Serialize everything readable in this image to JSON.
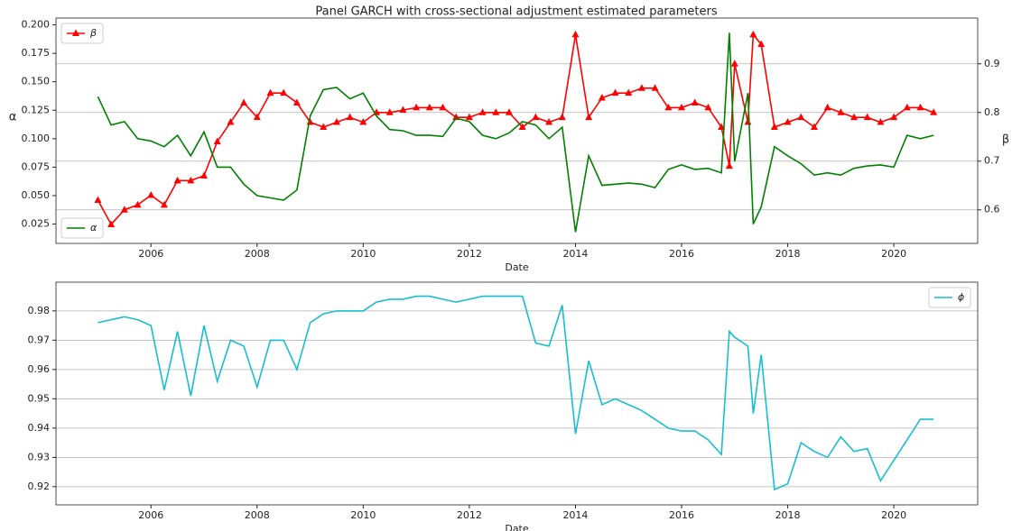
{
  "chart_data": [
    {
      "type": "line",
      "title": "Panel GARCH with cross-sectional adjustment estimated parameters",
      "xlabel": "Date",
      "ylabel": "α",
      "y2label": "β",
      "x": [
        2005,
        2005.25,
        2005.5,
        2005.75,
        2006,
        2006.25,
        2006.5,
        2006.75,
        2007,
        2007.25,
        2007.5,
        2007.75,
        2008,
        2008.25,
        2008.5,
        2008.75,
        2009,
        2009.25,
        2009.5,
        2009.75,
        2010,
        2010.25,
        2010.5,
        2010.75,
        2011,
        2011.25,
        2011.5,
        2011.75,
        2012,
        2012.25,
        2012.5,
        2012.75,
        2013,
        2013.25,
        2013.5,
        2013.75,
        2014,
        2014.25,
        2014.5,
        2014.75,
        2015,
        2015.25,
        2015.5,
        2015.75,
        2016,
        2016.25,
        2016.5,
        2016.75,
        2016.9,
        2017,
        2017.25,
        2017.35,
        2017.5,
        2017.75,
        2018,
        2018.25,
        2018.5,
        2018.75,
        2019,
        2019.25,
        2019.5,
        2019.75,
        2020,
        2020.25,
        2020.5,
        2020.75
      ],
      "xlim": [
        2004.21,
        2021.58
      ],
      "xticks": [
        2006,
        2008,
        2010,
        2012,
        2014,
        2016,
        2018,
        2020
      ],
      "ylim": [
        0.008,
        0.206
      ],
      "yticks": [
        0.025,
        {
          "value": 0.05,
          "label": "0.050"
        },
        0.075,
        {
          "value": 0.1,
          "label": "0.100"
        },
        0.125,
        {
          "value": 0.15,
          "label": "0.150"
        },
        0.175,
        {
          "value": 0.2,
          "label": "0.200"
        }
      ],
      "y2lim": [
        0.531,
        0.994
      ],
      "y2ticks": [
        0.6,
        0.7,
        0.8,
        0.9
      ],
      "grid": "y2",
      "series": [
        {
          "name": "β",
          "color": "#ff0000",
          "axis": "y2",
          "marker": "triangle",
          "legend": "upper left",
          "values": [
            0.62,
            0.57,
            0.6,
            0.61,
            0.63,
            0.61,
            0.66,
            0.66,
            0.67,
            0.74,
            0.78,
            0.82,
            0.79,
            0.84,
            0.84,
            0.82,
            0.78,
            0.77,
            0.78,
            0.79,
            0.78,
            0.8,
            0.8,
            0.805,
            0.81,
            0.81,
            0.81,
            0.79,
            0.79,
            0.8,
            0.8,
            0.8,
            0.77,
            0.79,
            0.78,
            0.79,
            0.96,
            0.79,
            0.83,
            0.84,
            0.84,
            0.85,
            0.85,
            0.81,
            0.81,
            0.82,
            0.81,
            0.77,
            0.69,
            0.9,
            0.78,
            0.96,
            0.94,
            0.77,
            0.78,
            0.79,
            0.77,
            0.81,
            0.8,
            0.79,
            0.79,
            0.78,
            0.79,
            0.81,
            0.81,
            0.8
          ]
        },
        {
          "name": "α",
          "color": "#008000",
          "legend": "lower left",
          "values": [
            0.137,
            0.112,
            0.115,
            0.1,
            0.098,
            0.093,
            0.103,
            0.085,
            0.106,
            0.075,
            0.075,
            0.06,
            0.05,
            0.048,
            0.046,
            0.055,
            0.12,
            0.143,
            0.145,
            0.135,
            0.14,
            0.12,
            0.108,
            0.107,
            0.103,
            0.103,
            0.102,
            0.118,
            0.115,
            0.103,
            0.1,
            0.105,
            0.115,
            0.112,
            0.1,
            0.11,
            0.018,
            0.085,
            0.059,
            0.06,
            0.061,
            0.06,
            0.057,
            0.073,
            0.077,
            0.073,
            0.074,
            0.07,
            0.193,
            0.08,
            0.14,
            0.025,
            0.04,
            0.093,
            0.085,
            0.078,
            0.068,
            0.07,
            0.068,
            0.074,
            0.076,
            0.077,
            0.075,
            0.103,
            0.1,
            0.103
          ]
        }
      ]
    },
    {
      "type": "line",
      "xlabel": "Date",
      "x": [
        2005,
        2005.25,
        2005.5,
        2005.75,
        2006,
        2006.25,
        2006.5,
        2006.75,
        2007,
        2007.25,
        2007.5,
        2007.75,
        2008,
        2008.25,
        2008.5,
        2008.75,
        2009,
        2009.25,
        2009.5,
        2009.75,
        2010,
        2010.25,
        2010.5,
        2010.75,
        2011,
        2011.25,
        2011.5,
        2011.75,
        2012,
        2012.25,
        2012.5,
        2012.75,
        2013,
        2013.25,
        2013.5,
        2013.75,
        2014,
        2014.25,
        2014.5,
        2014.75,
        2015,
        2015.25,
        2015.5,
        2015.75,
        2016,
        2016.25,
        2016.5,
        2016.75,
        2016.9,
        2017,
        2017.25,
        2017.35,
        2017.5,
        2017.75,
        2018,
        2018.25,
        2018.5,
        2018.75,
        2019,
        2019.25,
        2019.5,
        2019.75,
        2020,
        2020.25,
        2020.5,
        2020.75
      ],
      "xlim": [
        2004.21,
        2021.58
      ],
      "xticks": [
        2006,
        2008,
        2010,
        2012,
        2014,
        2016,
        2018,
        2020
      ],
      "ylim": [
        0.9138,
        0.9898
      ],
      "yticks": [
        0.92,
        0.93,
        0.94,
        0.95,
        0.96,
        0.97,
        0.98
      ],
      "grid": "y",
      "series": [
        {
          "name": "ϕ",
          "color": "#17becf",
          "legend": "upper right",
          "values": [
            0.976,
            0.977,
            0.978,
            0.977,
            0.975,
            0.953,
            0.973,
            0.951,
            0.975,
            0.956,
            0.97,
            0.968,
            0.954,
            0.97,
            0.97,
            0.96,
            0.976,
            0.979,
            0.98,
            0.98,
            0.98,
            0.983,
            0.984,
            0.984,
            0.985,
            0.985,
            0.984,
            0.983,
            0.984,
            0.985,
            0.985,
            0.985,
            0.985,
            0.969,
            0.968,
            0.982,
            0.938,
            0.963,
            0.948,
            0.95,
            0.948,
            0.946,
            0.943,
            0.94,
            0.939,
            0.939,
            0.936,
            0.931,
            0.973,
            0.971,
            0.968,
            0.945,
            0.965,
            0.919,
            0.921,
            0.935,
            0.932,
            0.93,
            0.937,
            0.932,
            0.933,
            0.922,
            0.929,
            0.936,
            0.943,
            0.943
          ]
        }
      ]
    }
  ]
}
